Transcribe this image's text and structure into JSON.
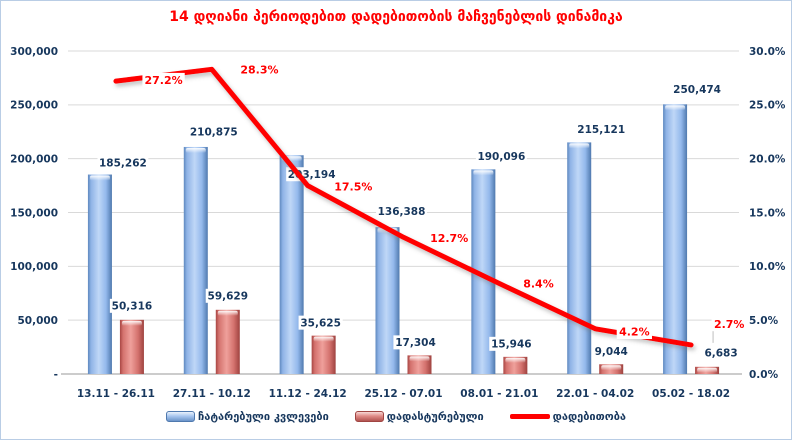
{
  "colors": {
    "title": "#ff0000",
    "axis_text": "#17375d",
    "grid": "#d9d9d9",
    "axis_line": "#adadad",
    "frame_border": "#b9cde5",
    "line": "#ff0000",
    "bar_label_text": "#17375d",
    "pct_label_text": "#ff0000",
    "bar_blue_edge": "#4f79ae",
    "bar_blue_center": "#bfd7f7",
    "bar_red_edge": "#a84643",
    "bar_red_center": "#efa09b",
    "leader_line": "#bfbfbf"
  },
  "chart_data": {
    "type": "combo-bar-line",
    "title": "14 დღიანი პერიოდებით დადებითობის მაჩვენებლის დინამიკა",
    "categories": [
      "13.11 - 26.11",
      "27.11 - 10.12",
      "11.12 - 24.12",
      "25.12 - 07.01",
      "08.01 - 21.01",
      "22.01 - 04.02",
      "05.02 - 18.02"
    ],
    "series": [
      {
        "name": "ჩატარებული კვლევები",
        "type": "bar",
        "axis": "left",
        "values": [
          185262,
          210875,
          203194,
          136388,
          190096,
          215121,
          250474
        ],
        "labels": [
          "185,262",
          "210,875",
          "203,194",
          "136,388",
          "190,096",
          "215,121",
          "250,474"
        ]
      },
      {
        "name": "დადასტურებული",
        "type": "bar",
        "axis": "left",
        "values": [
          50316,
          59629,
          35625,
          17304,
          15946,
          9044,
          6683
        ],
        "labels": [
          "50,316",
          "59,629",
          "35,625",
          "17,304",
          "15,946",
          "9,044",
          "6,683"
        ]
      },
      {
        "name": "დადებითობა",
        "type": "line",
        "axis": "right",
        "values": [
          27.2,
          28.3,
          17.5,
          12.7,
          8.4,
          4.2,
          2.7
        ],
        "labels": [
          "27.2%",
          "28.3%",
          "17.5%",
          "12.7%",
          "8.4%",
          "4.2%",
          "2.7%"
        ]
      }
    ],
    "left_axis": {
      "min": 0,
      "max": 300000,
      "ticks": [
        "300,000",
        "250,000",
        "200,000",
        "150,000",
        "100,000",
        "50,000",
        "-"
      ]
    },
    "right_axis": {
      "min": 0,
      "max": 30,
      "ticks": [
        "30.0%",
        "25.0%",
        "20.0%",
        "15.0%",
        "10.0%",
        "5.0%",
        "0.0%"
      ]
    },
    "legend_position": "bottom",
    "grid": "horizontal"
  }
}
